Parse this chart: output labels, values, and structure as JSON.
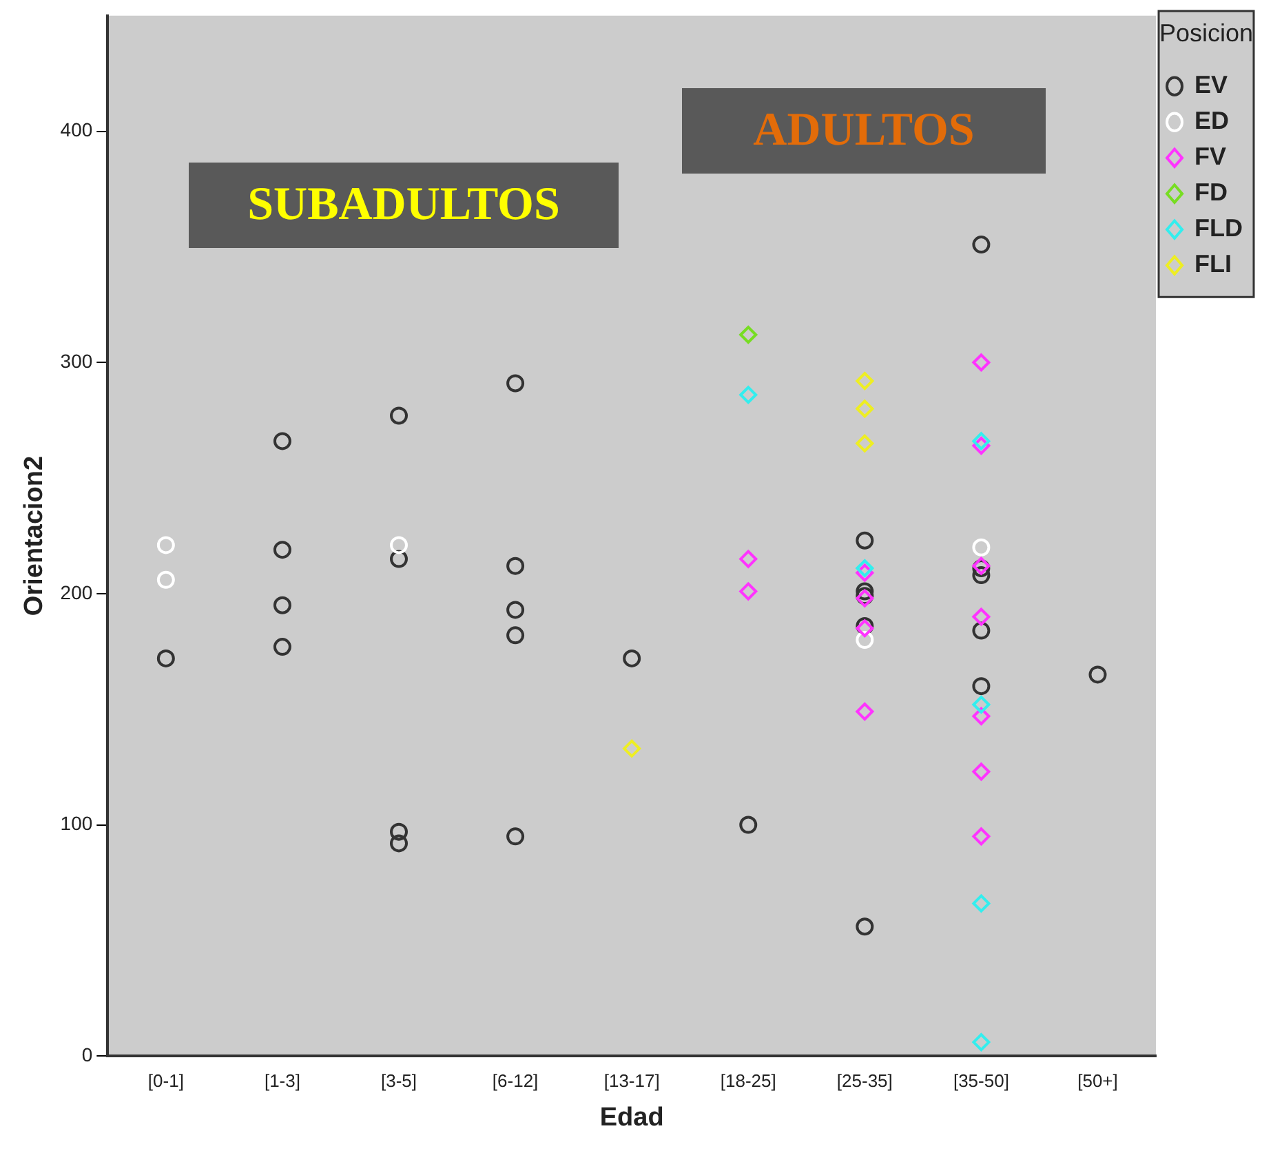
{
  "chart_data": {
    "type": "scatter",
    "xlabel": "Edad",
    "ylabel": "Orientacion2",
    "legend_title": "Posicion",
    "legend": "top right",
    "grid": false,
    "categories": [
      "[0-1]",
      "[1-3]",
      "[3-5]",
      "[6-12]",
      "[13-17]",
      "[18-25]",
      "[25-35]",
      "[35-50]",
      "[50+]"
    ],
    "ylim": [
      0,
      450
    ],
    "yticks": [
      0,
      100,
      200,
      300,
      400
    ],
    "annotations": [
      "SUBADULTOS",
      "ADULTOS"
    ],
    "series": [
      {
        "name": "EV",
        "color": "#333333",
        "marker": "circle",
        "x": [
          "[0-1]",
          "[1-3]",
          "[1-3]",
          "[1-3]",
          "[1-3]",
          "[3-5]",
          "[3-5]",
          "[3-5]",
          "[3-5]",
          "[6-12]",
          "[6-12]",
          "[6-12]",
          "[6-12]",
          "[6-12]",
          "[13-17]",
          "[18-25]",
          "[25-35]",
          "[25-35]",
          "[25-35]",
          "[25-35]",
          "[25-35]",
          "[35-50]",
          "[35-50]",
          "[35-50]",
          "[35-50]",
          "[35-50]",
          "[50+]"
        ],
        "values": [
          172,
          266,
          219,
          195,
          177,
          277,
          215,
          97,
          92,
          291,
          212,
          193,
          182,
          95,
          172,
          100,
          223,
          201,
          199,
          186,
          56,
          351,
          211,
          208,
          184,
          160,
          165
        ]
      },
      {
        "name": "ED",
        "color": "#ffffff",
        "marker": "circle",
        "x": [
          "[0-1]",
          "[0-1]",
          "[3-5]",
          "[25-35]",
          "[35-50]"
        ],
        "values": [
          221,
          206,
          221,
          180,
          220
        ]
      },
      {
        "name": "FV",
        "color": "#ff33ff",
        "marker": "diamond",
        "x": [
          "[18-25]",
          "[18-25]",
          "[25-35]",
          "[25-35]",
          "[25-35]",
          "[25-35]",
          "[35-50]",
          "[35-50]",
          "[35-50]",
          "[35-50]",
          "[35-50]",
          "[35-50]",
          "[35-50]"
        ],
        "values": [
          215,
          201,
          209,
          198,
          185,
          149,
          300,
          264,
          212,
          190,
          147,
          123,
          95
        ]
      },
      {
        "name": "FD",
        "color": "#77dd22",
        "marker": "diamond",
        "x": [
          "[18-25]"
        ],
        "values": [
          312
        ]
      },
      {
        "name": "FLD",
        "color": "#33eeee",
        "marker": "diamond",
        "x": [
          "[18-25]",
          "[25-35]",
          "[35-50]",
          "[35-50]",
          "[35-50]",
          "[35-50]"
        ],
        "values": [
          286,
          211,
          266,
          152,
          66,
          6
        ]
      },
      {
        "name": "FLI",
        "color": "#eeee22",
        "marker": "diamond",
        "x": [
          "[13-17]",
          "[25-35]",
          "[25-35]",
          "[25-35]"
        ],
        "values": [
          133,
          292,
          280,
          265
        ]
      }
    ]
  }
}
